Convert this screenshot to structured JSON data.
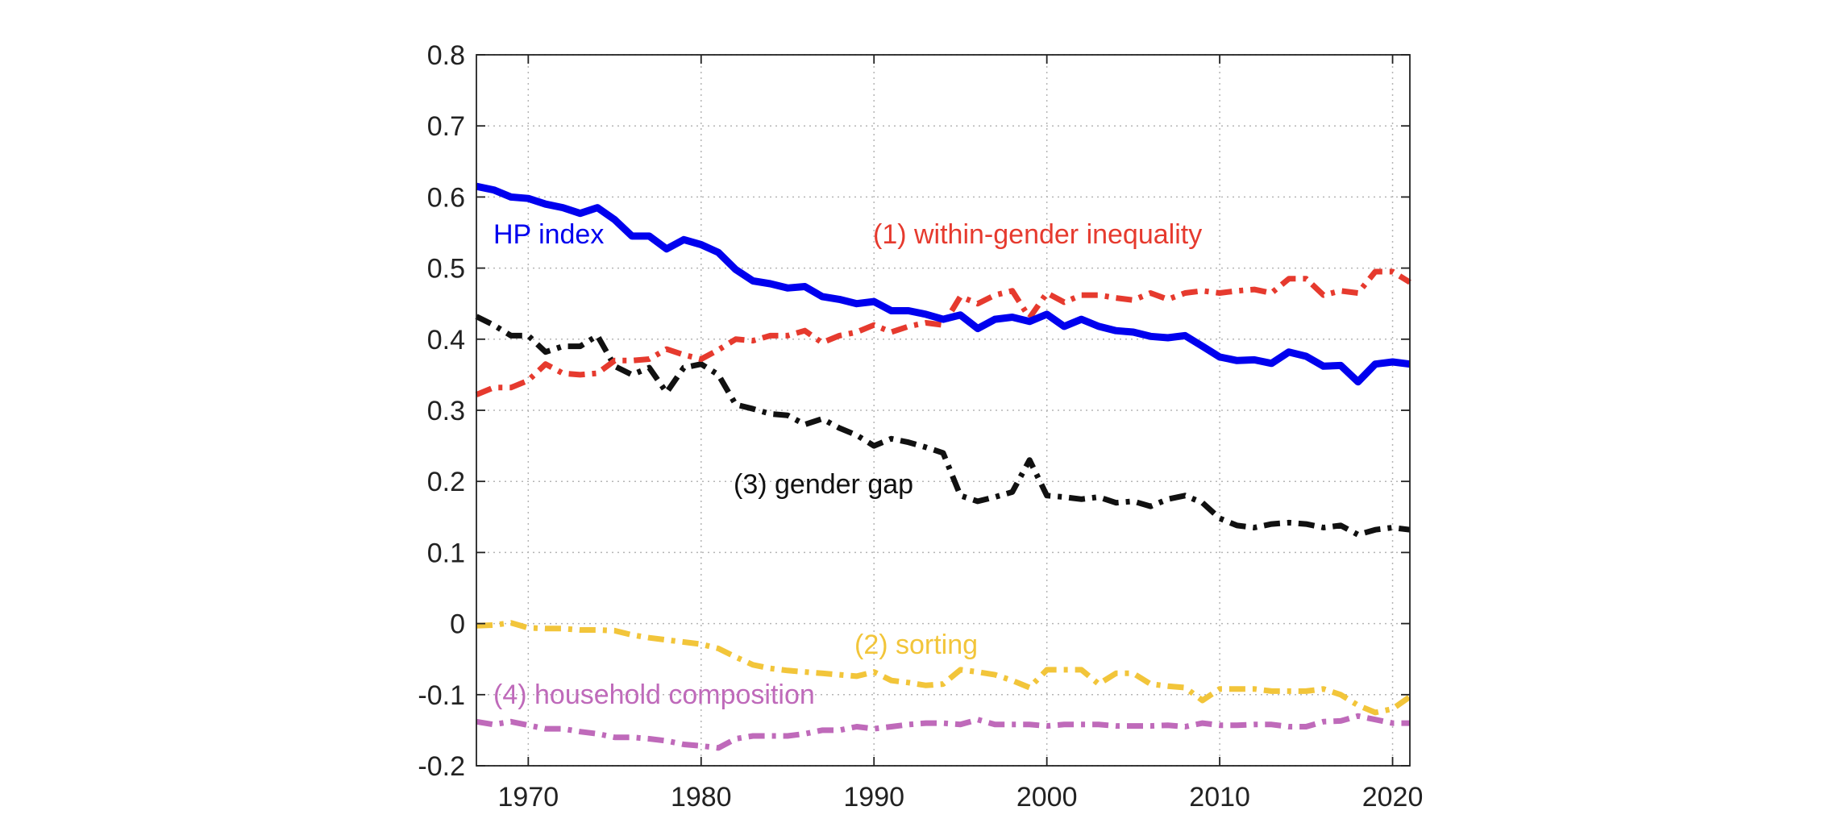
{
  "chart_data": {
    "type": "line",
    "title": "",
    "xlabel": "",
    "ylabel": "",
    "xlim": [
      1967,
      2021
    ],
    "ylim": [
      -0.2,
      0.8
    ],
    "xticks": [
      "1970",
      "1980",
      "1990",
      "2000",
      "2010",
      "2020"
    ],
    "yticks": [
      "-0.2",
      "-0.1",
      "0",
      "0.1",
      "0.2",
      "0.3",
      "0.4",
      "0.5",
      "0.6",
      "0.7",
      "0.8"
    ],
    "grid": true,
    "x": [
      1967,
      1968,
      1969,
      1970,
      1971,
      1972,
      1973,
      1974,
      1975,
      1976,
      1977,
      1978,
      1979,
      1980,
      1981,
      1982,
      1983,
      1984,
      1985,
      1986,
      1987,
      1988,
      1989,
      1990,
      1991,
      1992,
      1993,
      1994,
      1995,
      1996,
      1997,
      1998,
      1999,
      2000,
      2001,
      2002,
      2003,
      2004,
      2005,
      2006,
      2007,
      2008,
      2009,
      2010,
      2011,
      2012,
      2013,
      2014,
      2015,
      2016,
      2017,
      2018,
      2019,
      2020,
      2021
    ],
    "series": [
      {
        "label": "HP index",
        "color": "#0000ee",
        "style": "solid",
        "values": [
          0.615,
          0.61,
          0.6,
          0.598,
          0.59,
          0.585,
          0.577,
          0.585,
          0.568,
          0.545,
          0.545,
          0.527,
          0.54,
          0.533,
          0.522,
          0.498,
          0.482,
          0.478,
          0.472,
          0.474,
          0.46,
          0.456,
          0.45,
          0.453,
          0.44,
          0.44,
          0.435,
          0.428,
          0.434,
          0.415,
          0.428,
          0.431,
          0.425,
          0.435,
          0.418,
          0.428,
          0.418,
          0.412,
          0.41,
          0.404,
          0.402,
          0.405,
          0.39,
          0.375,
          0.37,
          0.371,
          0.366,
          0.382,
          0.376,
          0.362,
          0.363,
          0.34,
          0.365,
          0.368,
          0.365
        ]
      },
      {
        "label": "(1) within-gender inequality",
        "color": "#e63a2e",
        "style": "dashdot",
        "values": [
          0.322,
          0.332,
          0.332,
          0.342,
          0.365,
          0.352,
          0.35,
          0.352,
          0.37,
          0.37,
          0.372,
          0.386,
          0.378,
          0.372,
          0.385,
          0.4,
          0.398,
          0.405,
          0.405,
          0.412,
          0.395,
          0.405,
          0.41,
          0.42,
          0.41,
          0.418,
          0.423,
          0.42,
          0.46,
          0.45,
          0.462,
          0.468,
          0.43,
          0.465,
          0.452,
          0.462,
          0.462,
          0.458,
          0.455,
          0.465,
          0.456,
          0.465,
          0.468,
          0.465,
          0.468,
          0.47,
          0.465,
          0.485,
          0.485,
          0.462,
          0.468,
          0.465,
          0.495,
          0.495,
          0.48
        ]
      },
      {
        "label": "(2) sorting",
        "color": "#f2c53a",
        "style": "dashdot",
        "values": [
          -0.003,
          -0.002,
          0.001,
          -0.006,
          -0.007,
          -0.007,
          -0.009,
          -0.009,
          -0.01,
          -0.016,
          -0.02,
          -0.023,
          -0.026,
          -0.029,
          -0.035,
          -0.047,
          -0.058,
          -0.063,
          -0.066,
          -0.068,
          -0.07,
          -0.072,
          -0.074,
          -0.068,
          -0.08,
          -0.083,
          -0.087,
          -0.085,
          -0.065,
          -0.068,
          -0.072,
          -0.08,
          -0.09,
          -0.065,
          -0.065,
          -0.065,
          -0.085,
          -0.07,
          -0.07,
          -0.085,
          -0.088,
          -0.09,
          -0.108,
          -0.092,
          -0.092,
          -0.092,
          -0.095,
          -0.095,
          -0.095,
          -0.092,
          -0.1,
          -0.115,
          -0.125,
          -0.12,
          -0.103
        ]
      },
      {
        "label": "(3) gender gap",
        "color": "#111111",
        "style": "dashdot",
        "values": [
          0.432,
          0.42,
          0.405,
          0.405,
          0.382,
          0.39,
          0.39,
          0.405,
          0.362,
          0.35,
          0.36,
          0.325,
          0.36,
          0.365,
          0.35,
          0.308,
          0.302,
          0.295,
          0.293,
          0.28,
          0.288,
          0.275,
          0.265,
          0.25,
          0.26,
          0.255,
          0.248,
          0.24,
          0.18,
          0.172,
          0.178,
          0.185,
          0.23,
          0.18,
          0.178,
          0.175,
          0.178,
          0.17,
          0.172,
          0.165,
          0.175,
          0.18,
          0.17,
          0.148,
          0.138,
          0.135,
          0.14,
          0.142,
          0.14,
          0.135,
          0.138,
          0.125,
          0.132,
          0.135,
          0.132
        ]
      },
      {
        "label": "(4) household composition",
        "color": "#bf6aba",
        "style": "dashdot",
        "values": [
          -0.138,
          -0.142,
          -0.138,
          -0.143,
          -0.148,
          -0.148,
          -0.152,
          -0.155,
          -0.16,
          -0.16,
          -0.162,
          -0.165,
          -0.17,
          -0.172,
          -0.175,
          -0.162,
          -0.158,
          -0.158,
          -0.158,
          -0.155,
          -0.15,
          -0.15,
          -0.145,
          -0.148,
          -0.145,
          -0.142,
          -0.14,
          -0.14,
          -0.142,
          -0.135,
          -0.142,
          -0.142,
          -0.142,
          -0.144,
          -0.142,
          -0.142,
          -0.142,
          -0.144,
          -0.144,
          -0.144,
          -0.143,
          -0.145,
          -0.14,
          -0.143,
          -0.143,
          -0.142,
          -0.142,
          -0.145,
          -0.145,
          -0.138,
          -0.137,
          -0.13,
          -0.135,
          -0.14,
          -0.14
        ]
      }
    ]
  }
}
